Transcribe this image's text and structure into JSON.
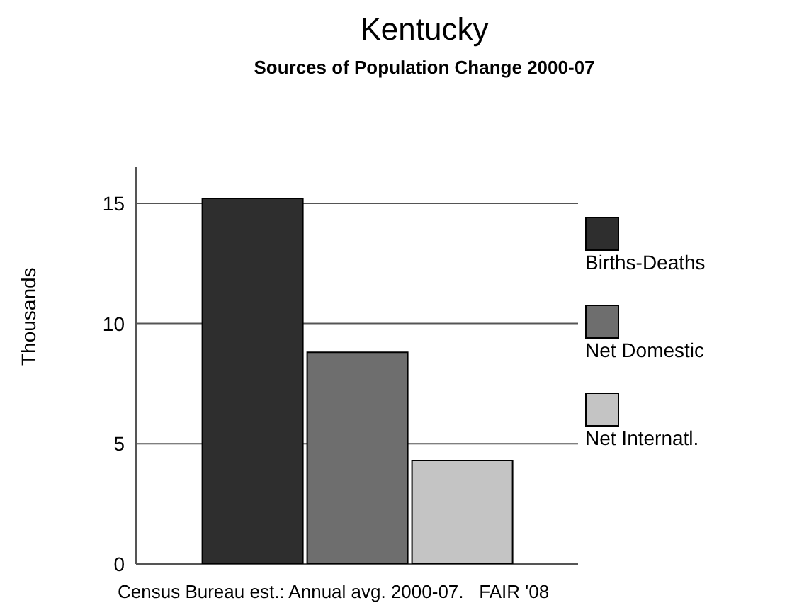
{
  "chart_data": {
    "type": "bar",
    "title": "Kentucky",
    "subtitle": "Sources of Population Change 2000-07",
    "ylabel": "Thousands",
    "categories": [
      null
    ],
    "series": [
      {
        "name": "Births-Deaths",
        "color": "#2e2e2e",
        "values": [
          15.2
        ]
      },
      {
        "name": "Net Domestic",
        "color": "#6e6e6e",
        "values": [
          8.8
        ]
      },
      {
        "name": "Net Internatl.",
        "color": "#c4c4c4",
        "values": [
          4.3
        ]
      }
    ],
    "ylim": [
      0,
      16.5
    ],
    "yticks": [
      0,
      5,
      10,
      15
    ],
    "grid": "y",
    "legend": "right",
    "annotations": [
      "Census Bureau est.: Annual avg. 2000-07.   FAIR '08"
    ]
  }
}
